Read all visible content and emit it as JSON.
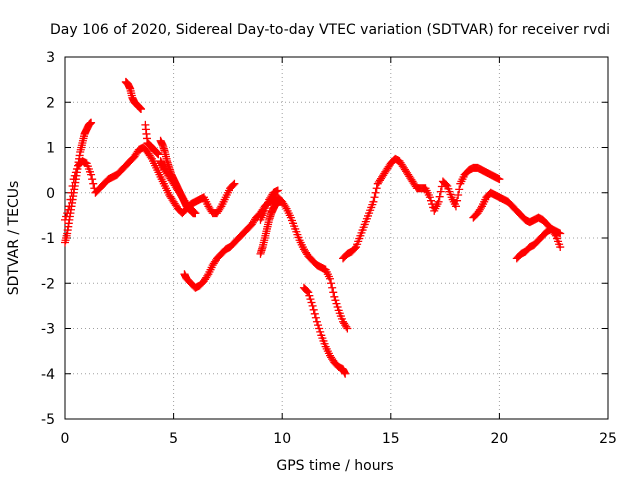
{
  "chart_data": {
    "type": "scatter",
    "title": "Day 106 of 2020, Sidereal Day-to-day VTEC variation (SDTVAR) for receiver rvdi",
    "xlabel": "GPS time / hours",
    "ylabel": "SDTVAR / TECUs",
    "xlim": [
      0,
      25
    ],
    "ylim": [
      -5,
      3
    ],
    "xticks": [
      "0",
      "5",
      "10",
      "15",
      "20",
      "25"
    ],
    "yticks": [
      "3",
      "2",
      "1",
      "0",
      "-1",
      "-2",
      "-3",
      "-4",
      "-5"
    ],
    "grid": true,
    "legend": "none",
    "marker": "+",
    "color": "#ff0000",
    "series": [
      {
        "x": [
          0.0,
          0.1,
          0.2,
          0.3,
          0.4,
          0.5,
          0.6,
          0.7,
          0.8,
          0.9,
          1.0,
          1.1,
          1.2
        ],
        "y": [
          -1.1,
          -0.9,
          -0.6,
          -0.3,
          0.0,
          0.3,
          0.6,
          0.9,
          1.1,
          1.3,
          1.4,
          1.5,
          1.55
        ]
      },
      {
        "x": [
          0.0,
          0.2,
          0.4,
          0.6,
          0.8,
          1.0,
          1.2,
          1.4,
          1.6,
          1.8,
          2.0,
          2.2,
          2.4,
          2.6,
          2.8,
          3.0,
          3.2,
          3.4,
          3.6,
          3.8,
          4.0,
          4.2,
          4.4,
          4.6,
          4.8,
          5.0,
          5.2,
          5.4,
          5.6,
          5.8,
          6.0,
          6.2,
          6.4,
          6.6,
          6.8,
          7.0,
          7.2,
          7.4,
          7.6,
          7.8
        ],
        "y": [
          -0.6,
          -0.3,
          0.3,
          0.6,
          0.7,
          0.65,
          0.4,
          0.0,
          0.1,
          0.2,
          0.3,
          0.35,
          0.4,
          0.5,
          0.6,
          0.7,
          0.8,
          0.95,
          1.0,
          0.9,
          0.75,
          0.55,
          0.35,
          0.15,
          -0.05,
          -0.2,
          -0.35,
          -0.45,
          -0.35,
          -0.25,
          -0.2,
          -0.15,
          -0.1,
          -0.3,
          -0.45,
          -0.45,
          -0.3,
          -0.1,
          0.1,
          0.2
        ]
      },
      {
        "x": [
          2.8,
          2.9,
          3.0,
          3.1,
          3.2,
          3.3,
          3.4,
          3.5
        ],
        "y": [
          2.45,
          2.4,
          2.3,
          2.1,
          2.0,
          1.95,
          1.9,
          1.85
        ]
      },
      {
        "x": [
          3.7,
          3.8,
          3.9,
          4.0,
          4.1,
          4.2,
          4.3
        ],
        "y": [
          1.5,
          1.1,
          1.05,
          1.0,
          0.95,
          0.9,
          0.85
        ]
      },
      {
        "x": [
          4.4,
          4.5,
          4.6,
          4.7,
          4.8,
          4.9,
          5.0,
          5.1,
          5.2,
          5.3,
          5.4,
          5.5,
          5.6,
          5.7,
          5.8,
          5.9,
          6.0
        ],
        "y": [
          1.15,
          1.05,
          0.9,
          0.7,
          0.55,
          0.4,
          0.3,
          0.2,
          0.1,
          0.0,
          -0.1,
          -0.2,
          -0.3,
          -0.35,
          -0.4,
          -0.45,
          -0.45
        ]
      },
      {
        "x": [
          4.4,
          4.5,
          4.6,
          4.8,
          5.0,
          5.2,
          5.4,
          5.6,
          5.8,
          6.0
        ],
        "y": [
          0.7,
          0.6,
          0.5,
          0.35,
          0.2,
          0.05,
          -0.1,
          -0.25,
          -0.35,
          -0.45
        ]
      },
      {
        "x": [
          5.5,
          5.6,
          5.8,
          6.0,
          6.2,
          6.4,
          6.6,
          6.8,
          7.0,
          7.2,
          7.4,
          7.6,
          7.8,
          8.0,
          8.2,
          8.4,
          8.6,
          8.8,
          9.0,
          9.2,
          9.4,
          9.6,
          9.8,
          10.0,
          10.2,
          10.4,
          10.6,
          10.8,
          11.0,
          11.2,
          11.4,
          11.6,
          11.8,
          12.0,
          12.2,
          12.4,
          12.6,
          12.8,
          13.0
        ],
        "y": [
          -1.8,
          -1.9,
          -2.0,
          -2.1,
          -2.05,
          -1.95,
          -1.8,
          -1.6,
          -1.45,
          -1.35,
          -1.25,
          -1.2,
          -1.1,
          -1.0,
          -0.9,
          -0.8,
          -0.7,
          -0.55,
          -0.45,
          -0.3,
          -0.2,
          -0.15,
          -0.1,
          -0.2,
          -0.35,
          -0.55,
          -0.8,
          -1.05,
          -1.25,
          -1.4,
          -1.5,
          -1.6,
          -1.65,
          -1.7,
          -1.9,
          -2.3,
          -2.6,
          -2.85,
          -3.0
        ]
      },
      {
        "x": [
          9.0,
          9.1,
          9.2,
          9.3,
          9.4,
          9.5,
          9.6,
          9.7,
          9.8,
          9.9
        ],
        "y": [
          -1.35,
          -1.2,
          -1.0,
          -0.8,
          -0.6,
          -0.45,
          -0.35,
          -0.25,
          -0.2,
          -0.2
        ]
      },
      {
        "x": [
          9.0,
          9.2,
          9.4,
          9.6,
          9.8
        ],
        "y": [
          -0.6,
          -0.4,
          -0.15,
          0.0,
          0.05
        ]
      },
      {
        "x": [
          11.0,
          11.2,
          11.4,
          11.6,
          11.8,
          12.0,
          12.2,
          12.4,
          12.6,
          12.8,
          12.9
        ],
        "y": [
          -2.1,
          -2.2,
          -2.5,
          -2.85,
          -3.15,
          -3.4,
          -3.6,
          -3.75,
          -3.85,
          -3.9,
          -4.0
        ]
      },
      {
        "x": [
          12.8,
          13.0,
          13.2,
          13.4,
          13.6,
          13.8,
          14.0,
          14.2,
          14.4,
          14.6,
          14.8,
          15.0,
          15.2,
          15.4,
          15.6,
          15.8,
          16.0,
          16.2,
          16.4,
          16.6,
          16.8,
          17.0,
          17.2,
          17.4,
          17.6,
          17.8,
          18.0,
          18.2,
          18.4,
          18.6,
          18.8,
          19.0,
          19.2,
          19.4,
          19.6,
          19.8,
          20.0
        ],
        "y": [
          -1.45,
          -1.35,
          -1.3,
          -1.2,
          -0.95,
          -0.7,
          -0.45,
          -0.2,
          0.2,
          0.35,
          0.5,
          0.65,
          0.75,
          0.7,
          0.55,
          0.4,
          0.25,
          0.1,
          0.1,
          0.1,
          -0.1,
          -0.4,
          -0.2,
          0.25,
          0.15,
          -0.1,
          -0.3,
          0.2,
          0.4,
          0.5,
          0.55,
          0.55,
          0.5,
          0.45,
          0.4,
          0.35,
          0.3
        ]
      },
      {
        "x": [
          18.8,
          19.0,
          19.2,
          19.4,
          19.6,
          19.8,
          20.0,
          20.2,
          20.4,
          20.6,
          20.8,
          21.0,
          21.2,
          21.4,
          21.6,
          21.8,
          22.0,
          22.2,
          22.4,
          22.6,
          22.8
        ],
        "y": [
          -0.55,
          -0.45,
          -0.3,
          -0.1,
          0.0,
          -0.05,
          -0.1,
          -0.15,
          -0.2,
          -0.3,
          -0.4,
          -0.5,
          -0.6,
          -0.65,
          -0.6,
          -0.55,
          -0.6,
          -0.7,
          -0.8,
          -0.85,
          -0.9
        ]
      },
      {
        "x": [
          20.8,
          21.0,
          21.2,
          21.4,
          21.6,
          21.8,
          22.0,
          22.2,
          22.4,
          22.6,
          22.8
        ],
        "y": [
          -1.45,
          -1.35,
          -1.3,
          -1.2,
          -1.15,
          -1.05,
          -0.95,
          -0.85,
          -0.8,
          -0.95,
          -1.2
        ]
      }
    ]
  }
}
